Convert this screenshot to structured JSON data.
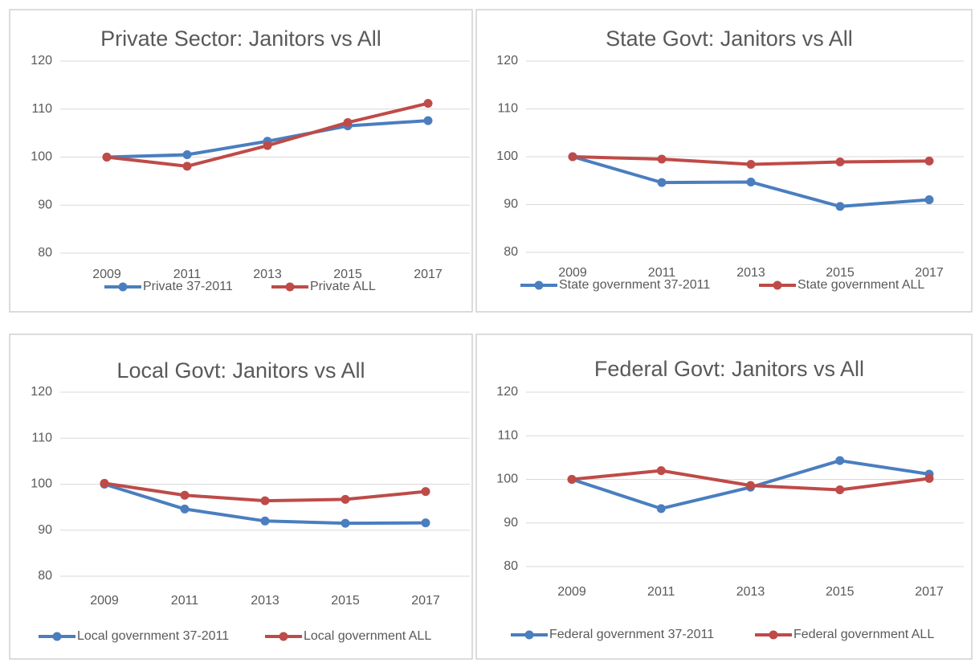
{
  "chart_data": [
    {
      "type": "line",
      "title": "Private Sector: Janitors vs All",
      "categories": [
        "2009",
        "2011",
        "2013",
        "2015",
        "2017"
      ],
      "series": [
        {
          "name": "Private 37-2011",
          "color": "#4a7ebf",
          "values": [
            100,
            100.5,
            103.3,
            106.5,
            107.6
          ]
        },
        {
          "name": "Private ALL",
          "color": "#be4b48",
          "values": [
            100,
            98.1,
            102.4,
            107.2,
            111.2
          ]
        }
      ],
      "ylim": [
        80,
        120
      ],
      "yticks": [
        80,
        90,
        100,
        110,
        120
      ],
      "grid": true,
      "legend": "bottom"
    },
    {
      "type": "line",
      "title": "State Govt: Janitors vs All",
      "categories": [
        "2009",
        "2011",
        "2013",
        "2015",
        "2017"
      ],
      "series": [
        {
          "name": "State government 37-2011",
          "color": "#4a7ebf",
          "values": [
            100,
            94.6,
            94.7,
            89.6,
            91
          ]
        },
        {
          "name": "State government ALL",
          "color": "#be4b48",
          "values": [
            100,
            99.5,
            98.4,
            98.9,
            99.1
          ]
        }
      ],
      "ylim": [
        80,
        120
      ],
      "yticks": [
        80,
        90,
        100,
        110,
        120
      ],
      "grid": true,
      "legend": "bottom"
    },
    {
      "type": "line",
      "title": "Local Govt: Janitors vs All",
      "categories": [
        "2009",
        "2011",
        "2013",
        "2015",
        "2017"
      ],
      "series": [
        {
          "name": "Local government 37-2011",
          "color": "#4a7ebf",
          "values": [
            100,
            94.6,
            92,
            91.5,
            91.6
          ]
        },
        {
          "name": "Local government ALL",
          "color": "#be4b48",
          "values": [
            100.2,
            97.6,
            96.4,
            96.7,
            98.4
          ]
        }
      ],
      "ylim": [
        80,
        120
      ],
      "yticks": [
        80,
        90,
        100,
        110,
        120
      ],
      "grid": true,
      "legend": "bottom"
    },
    {
      "type": "line",
      "title": "Federal Govt: Janitors vs All",
      "categories": [
        "2009",
        "2011",
        "2013",
        "2015",
        "2017"
      ],
      "series": [
        {
          "name": "Federal government 37-2011",
          "color": "#4a7ebf",
          "values": [
            100,
            93.3,
            98.2,
            104.3,
            101.2
          ]
        },
        {
          "name": "Federal government ALL",
          "color": "#be4b48",
          "values": [
            100,
            102,
            98.6,
            97.6,
            100.2
          ]
        }
      ],
      "ylim": [
        80,
        120
      ],
      "yticks": [
        80,
        90,
        100,
        110,
        120
      ],
      "grid": true,
      "legend": "bottom"
    }
  ]
}
